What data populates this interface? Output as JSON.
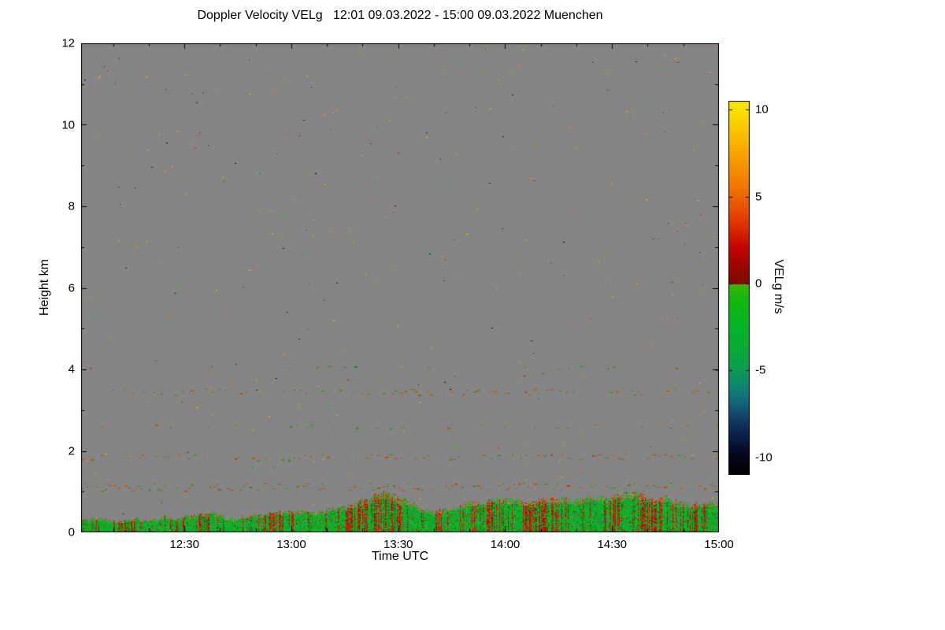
{
  "chart_data": {
    "type": "heatmap",
    "title": "Doppler Velocity VELg   12:01 09.03.2022 - 15:00 09.03.2022 Muenchen",
    "xlabel": "Time UTC",
    "ylabel": "Height km",
    "x_start_label": "12:01",
    "x_end_label": "15:00",
    "x_range_minutes": 179,
    "x_ticks": [
      {
        "minutes": 29,
        "label": "12:30"
      },
      {
        "minutes": 59,
        "label": "13:00"
      },
      {
        "minutes": 89,
        "label": "13:30"
      },
      {
        "minutes": 119,
        "label": "14:00"
      },
      {
        "minutes": 149,
        "label": "14:30"
      },
      {
        "minutes": 179,
        "label": "15:00"
      }
    ],
    "x_minor_every_minutes": 10,
    "y_min": 0,
    "y_max": 12,
    "y_ticks": [
      {
        "km": 0,
        "label": "0"
      },
      {
        "km": 2,
        "label": "2"
      },
      {
        "km": 4,
        "label": "4"
      },
      {
        "km": 6,
        "label": "6"
      },
      {
        "km": 8,
        "label": "8"
      },
      {
        "km": 10,
        "label": "10"
      },
      {
        "km": 12,
        "label": "12"
      }
    ],
    "y_minor_step_km": 1,
    "plot_background": "#858585",
    "frame_color": "#000000",
    "colorbar": {
      "label": "VELg m/s",
      "vmin": -11,
      "vmax": 10.5,
      "ticks": [
        {
          "value": 10,
          "label": "10"
        },
        {
          "value": 5,
          "label": "5"
        },
        {
          "value": 0,
          "label": "0"
        },
        {
          "value": -5,
          "label": "-5"
        },
        {
          "value": -10,
          "label": "-10"
        }
      ]
    },
    "colormap_stops": [
      [
        -11,
        "#000000"
      ],
      [
        -9.8,
        "#06061e"
      ],
      [
        -8.8,
        "#0a1e46"
      ],
      [
        -7.8,
        "#123c64"
      ],
      [
        -6.8,
        "#14647a"
      ],
      [
        -5.8,
        "#0f8872"
      ],
      [
        -4.8,
        "#0a9e50"
      ],
      [
        -3.6,
        "#06ac36"
      ],
      [
        -2.2,
        "#04b422"
      ],
      [
        -0.9,
        "#12b80e"
      ],
      [
        -0.05,
        "#3cb406"
      ],
      [
        0,
        "#7c0a00"
      ],
      [
        0.9,
        "#980600"
      ],
      [
        2,
        "#c00300"
      ],
      [
        3.2,
        "#dc2a00"
      ],
      [
        4.4,
        "#e95200"
      ],
      [
        5.6,
        "#f07800"
      ],
      [
        6.8,
        "#f59300"
      ],
      [
        8,
        "#f9b100"
      ],
      [
        9.2,
        "#fccf00"
      ],
      [
        10.5,
        "#ffe800"
      ]
    ],
    "noise_speckles": {
      "density": 0.0007,
      "warm_fraction": 0.4,
      "dark_fraction": 0.18
    },
    "streak_layers": [
      {
        "height_km": 1.12,
        "thickness_km": 0.2,
        "density": 0.26,
        "palette": [
          "#7c6c06",
          "#9a5a04",
          "#b44602",
          "#2f7d1c",
          "#6e6e10",
          "#c25002",
          "#3c8c14"
        ]
      },
      {
        "height_km": 1.85,
        "thickness_km": 0.14,
        "density": 0.13,
        "palette": [
          "#7c6c06",
          "#9a5a04",
          "#b44602",
          "#2f7d1c",
          "#6e6e10",
          "#c25002"
        ]
      },
      {
        "height_km": 2.6,
        "thickness_km": 0.1,
        "density": 0.045,
        "palette": [
          "#7c6c06",
          "#9a5a04",
          "#2f7d1c",
          "#6e6e10"
        ]
      },
      {
        "height_km": 3.45,
        "thickness_km": 0.14,
        "density": 0.11,
        "palette": [
          "#7c6c06",
          "#9a5a04",
          "#b44602",
          "#2f7d1c",
          "#6e6e10",
          "#c25002"
        ]
      },
      {
        "height_km": 4.05,
        "thickness_km": 0.08,
        "density": 0.02,
        "palette": [
          "#7c6c06",
          "#2f7d1c",
          "#6e6e10"
        ]
      }
    ],
    "boundary_layer": {
      "top_profile": [
        [
          0,
          0.4
        ],
        [
          10,
          0.32
        ],
        [
          20,
          0.3
        ],
        [
          30,
          0.42
        ],
        [
          36,
          0.5
        ],
        [
          42,
          0.35
        ],
        [
          50,
          0.45
        ],
        [
          58,
          0.55
        ],
        [
          66,
          0.5
        ],
        [
          74,
          0.65
        ],
        [
          82,
          0.9
        ],
        [
          86,
          1.02
        ],
        [
          90,
          0.85
        ],
        [
          96,
          0.6
        ],
        [
          102,
          0.55
        ],
        [
          108,
          0.72
        ],
        [
          114,
          0.8
        ],
        [
          120,
          0.82
        ],
        [
          126,
          0.78
        ],
        [
          132,
          0.88
        ],
        [
          138,
          0.8
        ],
        [
          142,
          0.92
        ],
        [
          148,
          0.88
        ],
        [
          152,
          0.96
        ],
        [
          156,
          1.0
        ],
        [
          160,
          0.82
        ],
        [
          164,
          0.9
        ],
        [
          168,
          0.72
        ],
        [
          172,
          0.68
        ],
        [
          179,
          0.78
        ]
      ],
      "jitter_km": 0.1,
      "green_velocity_range": [
        -4.5,
        -0.5
      ],
      "red_velocity_range": [
        0.5,
        3.5
      ],
      "warm_cap_velocity_range": [
        4,
        7
      ],
      "red_base_probability": 0.13,
      "red_patches": [
        [
          9,
          15,
          0.45
        ],
        [
          23,
          27,
          0.4
        ],
        [
          32,
          36,
          0.5
        ],
        [
          49,
          56,
          0.45
        ],
        [
          72,
          90,
          0.6
        ],
        [
          99,
          103,
          0.35
        ],
        [
          114,
          119,
          0.4
        ],
        [
          124,
          134,
          0.55
        ],
        [
          146,
          152,
          0.5
        ],
        [
          155,
          163,
          0.6
        ],
        [
          171,
          177,
          0.45
        ]
      ]
    },
    "seed": 1337
  }
}
